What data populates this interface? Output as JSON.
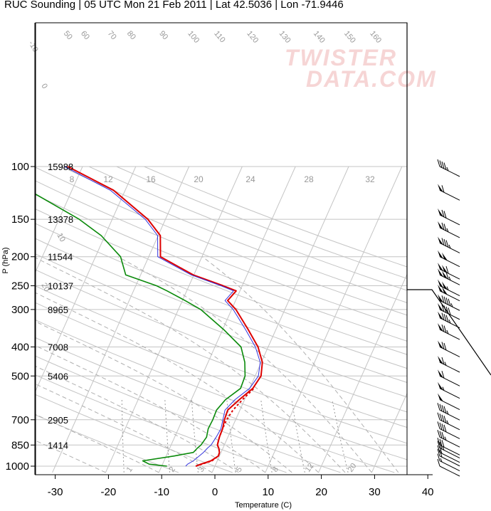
{
  "title": "RUC Sounding | 05 UTC Mon 21 Feb 2011 | Lat 42.5036 | Lon -71.9446",
  "watermark": {
    "line1": "TWISTER",
    "line2": "DATA.COM"
  },
  "chart_data": {
    "type": "skew-t",
    "xlabel": "Temperature (C)",
    "ylabel": "P (hPa)",
    "x_ticks": [
      -30,
      -20,
      -10,
      0,
      10,
      20,
      30,
      40
    ],
    "pressure_ticks": [
      1000,
      850,
      700,
      500,
      400,
      300,
      250,
      200,
      150,
      100
    ],
    "xlim": [
      -33,
      46
    ],
    "plim": [
      1050,
      100
    ],
    "heights": [
      {
        "p": 1000,
        "label": ""
      },
      {
        "p": 850,
        "label": "1414"
      },
      {
        "p": 700,
        "label": "2905"
      },
      {
        "p": 500,
        "label": "5406"
      },
      {
        "p": 400,
        "label": "7008"
      },
      {
        "p": 300,
        "label": "8965"
      },
      {
        "p": 250,
        "label": "10137"
      },
      {
        "p": 200,
        "label": "11544"
      },
      {
        "p": 150,
        "label": "13378"
      },
      {
        "p": 100,
        "label": "15988"
      }
    ],
    "mixing_ratio_labels": [
      "1",
      "2",
      "3",
      "5",
      "8",
      "12",
      "20"
    ],
    "wetbulb_labels": [
      "8",
      "12",
      "16",
      "20",
      "24",
      "28",
      "32"
    ],
    "isotherm_labels": [
      "-10",
      "0",
      "10",
      "20",
      "30",
      "40",
      "50",
      "60",
      "70",
      "80",
      "90",
      "100",
      "110",
      "120",
      "130",
      "140",
      "150",
      "160"
    ],
    "series": [
      {
        "name": "",
        "color": "#dd0000",
        "p": [
          1000,
          985,
          960,
          925,
          900,
          870,
          850,
          800,
          750,
          700,
          650,
          600,
          550,
          500,
          450,
          400,
          350,
          300,
          280,
          260,
          250,
          230,
          200,
          170,
          150,
          120,
          100
        ],
        "t": [
          -3.6,
          -2.8,
          -1.2,
          -0.2,
          -0.3,
          -0.8,
          -1.3,
          -1.6,
          -1.7,
          -2.1,
          -2.3,
          -1.0,
          0.6,
          1.1,
          0.2,
          -1.9,
          -5.2,
          -9.2,
          -11.5,
          -10.7,
          -13.6,
          -20.1,
          -27.8,
          -29.6,
          -33.3,
          -42.2,
          -52.8
        ]
      },
      {
        "name": "",
        "color": "#3333dd",
        "p": [
          1000,
          985,
          960,
          925,
          900,
          870,
          850,
          800,
          750,
          700,
          650,
          600,
          550,
          500,
          450,
          400,
          350,
          300,
          280,
          260,
          250,
          230,
          200,
          170,
          150,
          120,
          100
        ],
        "t": [
          -5.5,
          -5.3,
          -4.5,
          -3.8,
          -3.3,
          -2.9,
          -2.5,
          -2.2,
          -2.0,
          -2.4,
          -2.8,
          -1.8,
          0.0,
          0.6,
          -0.2,
          -2.4,
          -5.7,
          -9.7,
          -12.0,
          -11.2,
          -14.0,
          -20.5,
          -28.3,
          -30.1,
          -33.8,
          -42.8,
          -53.4
        ]
      },
      {
        "name": "",
        "color": "#0a8a0a",
        "p": [
          1000,
          985,
          960,
          925,
          900,
          870,
          850,
          800,
          750,
          700,
          650,
          600,
          550,
          500,
          450,
          400,
          350,
          300,
          280,
          260,
          250,
          230,
          200,
          170,
          150,
          120,
          100
        ],
        "t": [
          -9.0,
          -12.5,
          -14.0,
          -8.5,
          -5.2,
          -4.8,
          -4.4,
          -4.0,
          -4.4,
          -4.3,
          -4.4,
          -3.6,
          -1.7,
          -1.9,
          -3.1,
          -5.1,
          -9.8,
          -15.8,
          -19.5,
          -23.7,
          -26.1,
          -32.8,
          -35.3,
          -40.7,
          -46.2,
          -58.1,
          -72.6
        ]
      },
      {
        "name": "",
        "color": "#dd0000",
        "dashed": true,
        "p": [
          1000,
          960,
          925,
          900,
          870,
          850,
          800,
          750,
          700,
          650,
          600,
          575,
          550
        ],
        "t": [
          -3.6,
          -1.0,
          -0.2,
          -0.3,
          -0.8,
          -1.3,
          -1.6,
          -1.7,
          -1.7,
          -1.3,
          -0.4,
          0.2,
          0.8
        ]
      }
    ],
    "wind_barbs": [
      {
        "p": 1000,
        "speed": 10,
        "dir": 330
      },
      {
        "p": 960,
        "speed": 15,
        "dir": 325
      },
      {
        "p": 925,
        "speed": 20,
        "dir": 320
      },
      {
        "p": 900,
        "speed": 20,
        "dir": 300
      },
      {
        "p": 870,
        "speed": 25,
        "dir": 285
      },
      {
        "p": 850,
        "speed": 30,
        "dir": 275
      },
      {
        "p": 800,
        "speed": 35,
        "dir": 270
      },
      {
        "p": 750,
        "speed": 40,
        "dir": 270
      },
      {
        "p": 700,
        "speed": 45,
        "dir": 270
      },
      {
        "p": 650,
        "speed": 45,
        "dir": 270
      },
      {
        "p": 600,
        "speed": 50,
        "dir": 275
      },
      {
        "p": 550,
        "speed": 55,
        "dir": 280
      },
      {
        "p": 500,
        "speed": 60,
        "dir": 285
      },
      {
        "p": 450,
        "speed": 65,
        "dir": 290
      },
      {
        "p": 400,
        "speed": 70,
        "dir": 290
      },
      {
        "p": 350,
        "speed": 75,
        "dir": 290
      },
      {
        "p": 320,
        "speed": 85,
        "dir": 290
      },
      {
        "p": 300,
        "speed": 90,
        "dir": 290
      },
      {
        "p": 280,
        "speed": 95,
        "dir": 290
      },
      {
        "p": 260,
        "speed": 100,
        "dir": 290
      },
      {
        "p": 250,
        "speed": 105,
        "dir": 290
      },
      {
        "p": 230,
        "speed": 115,
        "dir": 290
      },
      {
        "p": 220,
        "speed": 110,
        "dir": 290
      },
      {
        "p": 200,
        "speed": 100,
        "dir": 290
      },
      {
        "p": 180,
        "speed": 85,
        "dir": 290
      },
      {
        "p": 160,
        "speed": 75,
        "dir": 285
      },
      {
        "p": 145,
        "speed": 70,
        "dir": 285
      },
      {
        "p": 120,
        "speed": 60,
        "dir": 285
      },
      {
        "p": 100,
        "speed": 45,
        "dir": 285
      }
    ]
  }
}
